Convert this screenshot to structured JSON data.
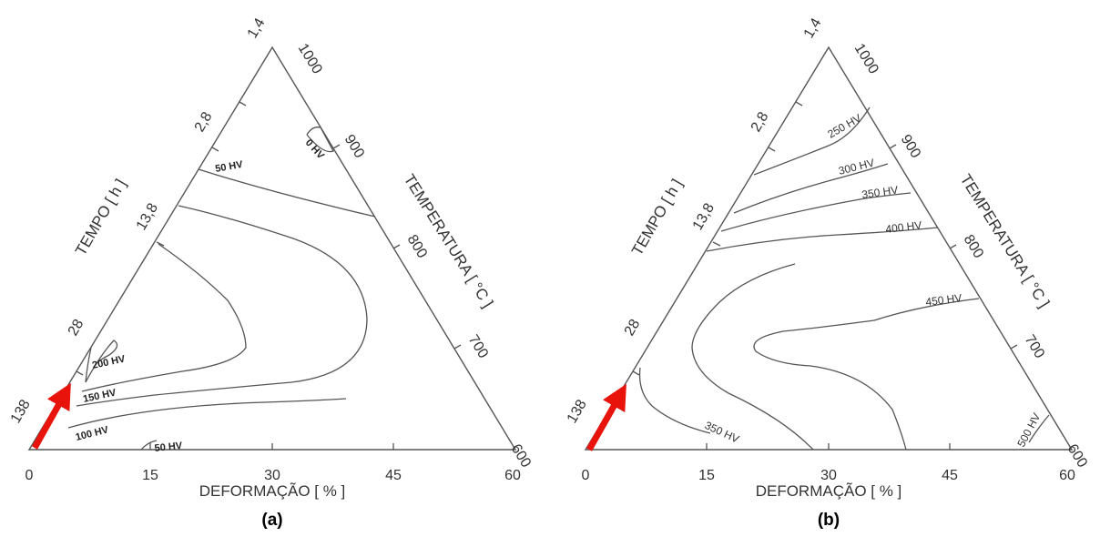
{
  "chart_data": [
    {
      "type": "ternary-contour",
      "panel_label": "(a)",
      "axes": {
        "bottom": {
          "label": "DEFORMAÇÃO [ % ]",
          "ticks": [
            "0",
            "15",
            "30",
            "45",
            "60"
          ],
          "range": [
            0,
            60
          ]
        },
        "left": {
          "label": "TEMPO [ h ]",
          "ticks": [
            "138",
            "28",
            "13,8",
            "2,8",
            "1,4"
          ]
        },
        "right": {
          "label": "TEMPERATURA [ °C ]",
          "ticks": [
            "1000",
            "900",
            "800",
            "700",
            "600"
          ],
          "range": [
            600,
            1000
          ]
        }
      },
      "contour_labels": [
        "0 HV",
        "50 HV",
        "200 HV",
        "150 HV",
        "100 HV",
        "50 HV"
      ]
    },
    {
      "type": "ternary-contour",
      "panel_label": "(b)",
      "axes": {
        "bottom": {
          "label": "DEFORMAÇÃO [ % ]",
          "ticks": [
            "0",
            "15",
            "30",
            "45",
            "60"
          ],
          "range": [
            0,
            60
          ]
        },
        "left": {
          "label": "TEMPO [ h ]",
          "ticks": [
            "138",
            "28",
            "13,8",
            "2,8",
            "1,4"
          ]
        },
        "right": {
          "label": "TEMPERATURA [ °C ]",
          "ticks": [
            "1000",
            "900",
            "800",
            "700",
            "600"
          ],
          "range": [
            600,
            1000
          ]
        }
      },
      "contour_labels": [
        "250 HV",
        "300 HV",
        "350 HV",
        "400 HV",
        "450 HV",
        "350 HV",
        "500 HV"
      ]
    }
  ],
  "colors": {
    "frame": "#555555",
    "arrow": "#e8140c"
  }
}
